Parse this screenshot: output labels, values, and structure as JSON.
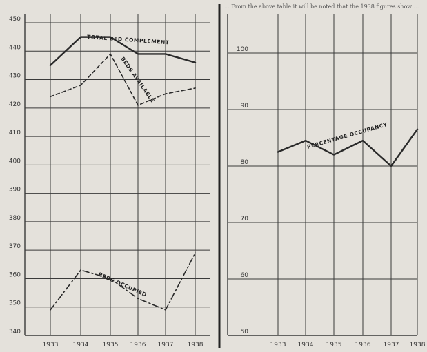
{
  "header_text": "... From the above table it will be noted that the 1938 figures show ...",
  "chart_data": [
    {
      "type": "line",
      "x": [
        1933,
        1934,
        1935,
        1936,
        1937,
        1938
      ],
      "ylim": [
        340,
        450
      ],
      "yticks": [
        340,
        350,
        360,
        370,
        380,
        390,
        400,
        410,
        420,
        430,
        440,
        450
      ],
      "grid": true,
      "series": [
        {
          "name": "TOTAL BED COMPLEMENT",
          "values": [
            435,
            445,
            445,
            439,
            439,
            436
          ],
          "style": "solid"
        },
        {
          "name": "BEDS AVAILABLE",
          "values": [
            424,
            428,
            439,
            421,
            425,
            427
          ],
          "style": "dashed"
        },
        {
          "name": "BEDS OCCUPIED",
          "values": [
            349,
            363,
            360,
            353,
            349,
            369
          ],
          "style": "dashdot"
        }
      ]
    },
    {
      "type": "line",
      "x": [
        1933,
        1934,
        1935,
        1936,
        1937,
        1938
      ],
      "ylim": [
        50,
        100
      ],
      "yticks": [
        50,
        60,
        70,
        80,
        90,
        100
      ],
      "grid": true,
      "series": [
        {
          "name": "PERCENTAGE OCCUPANCY",
          "values": [
            82.5,
            84.5,
            82,
            84.5,
            80,
            86.5
          ],
          "style": "solid"
        }
      ]
    }
  ],
  "colors": {
    "paper": "#e4e1db",
    "ink": "#2a2a2a",
    "grid": "#3a3a3a"
  }
}
